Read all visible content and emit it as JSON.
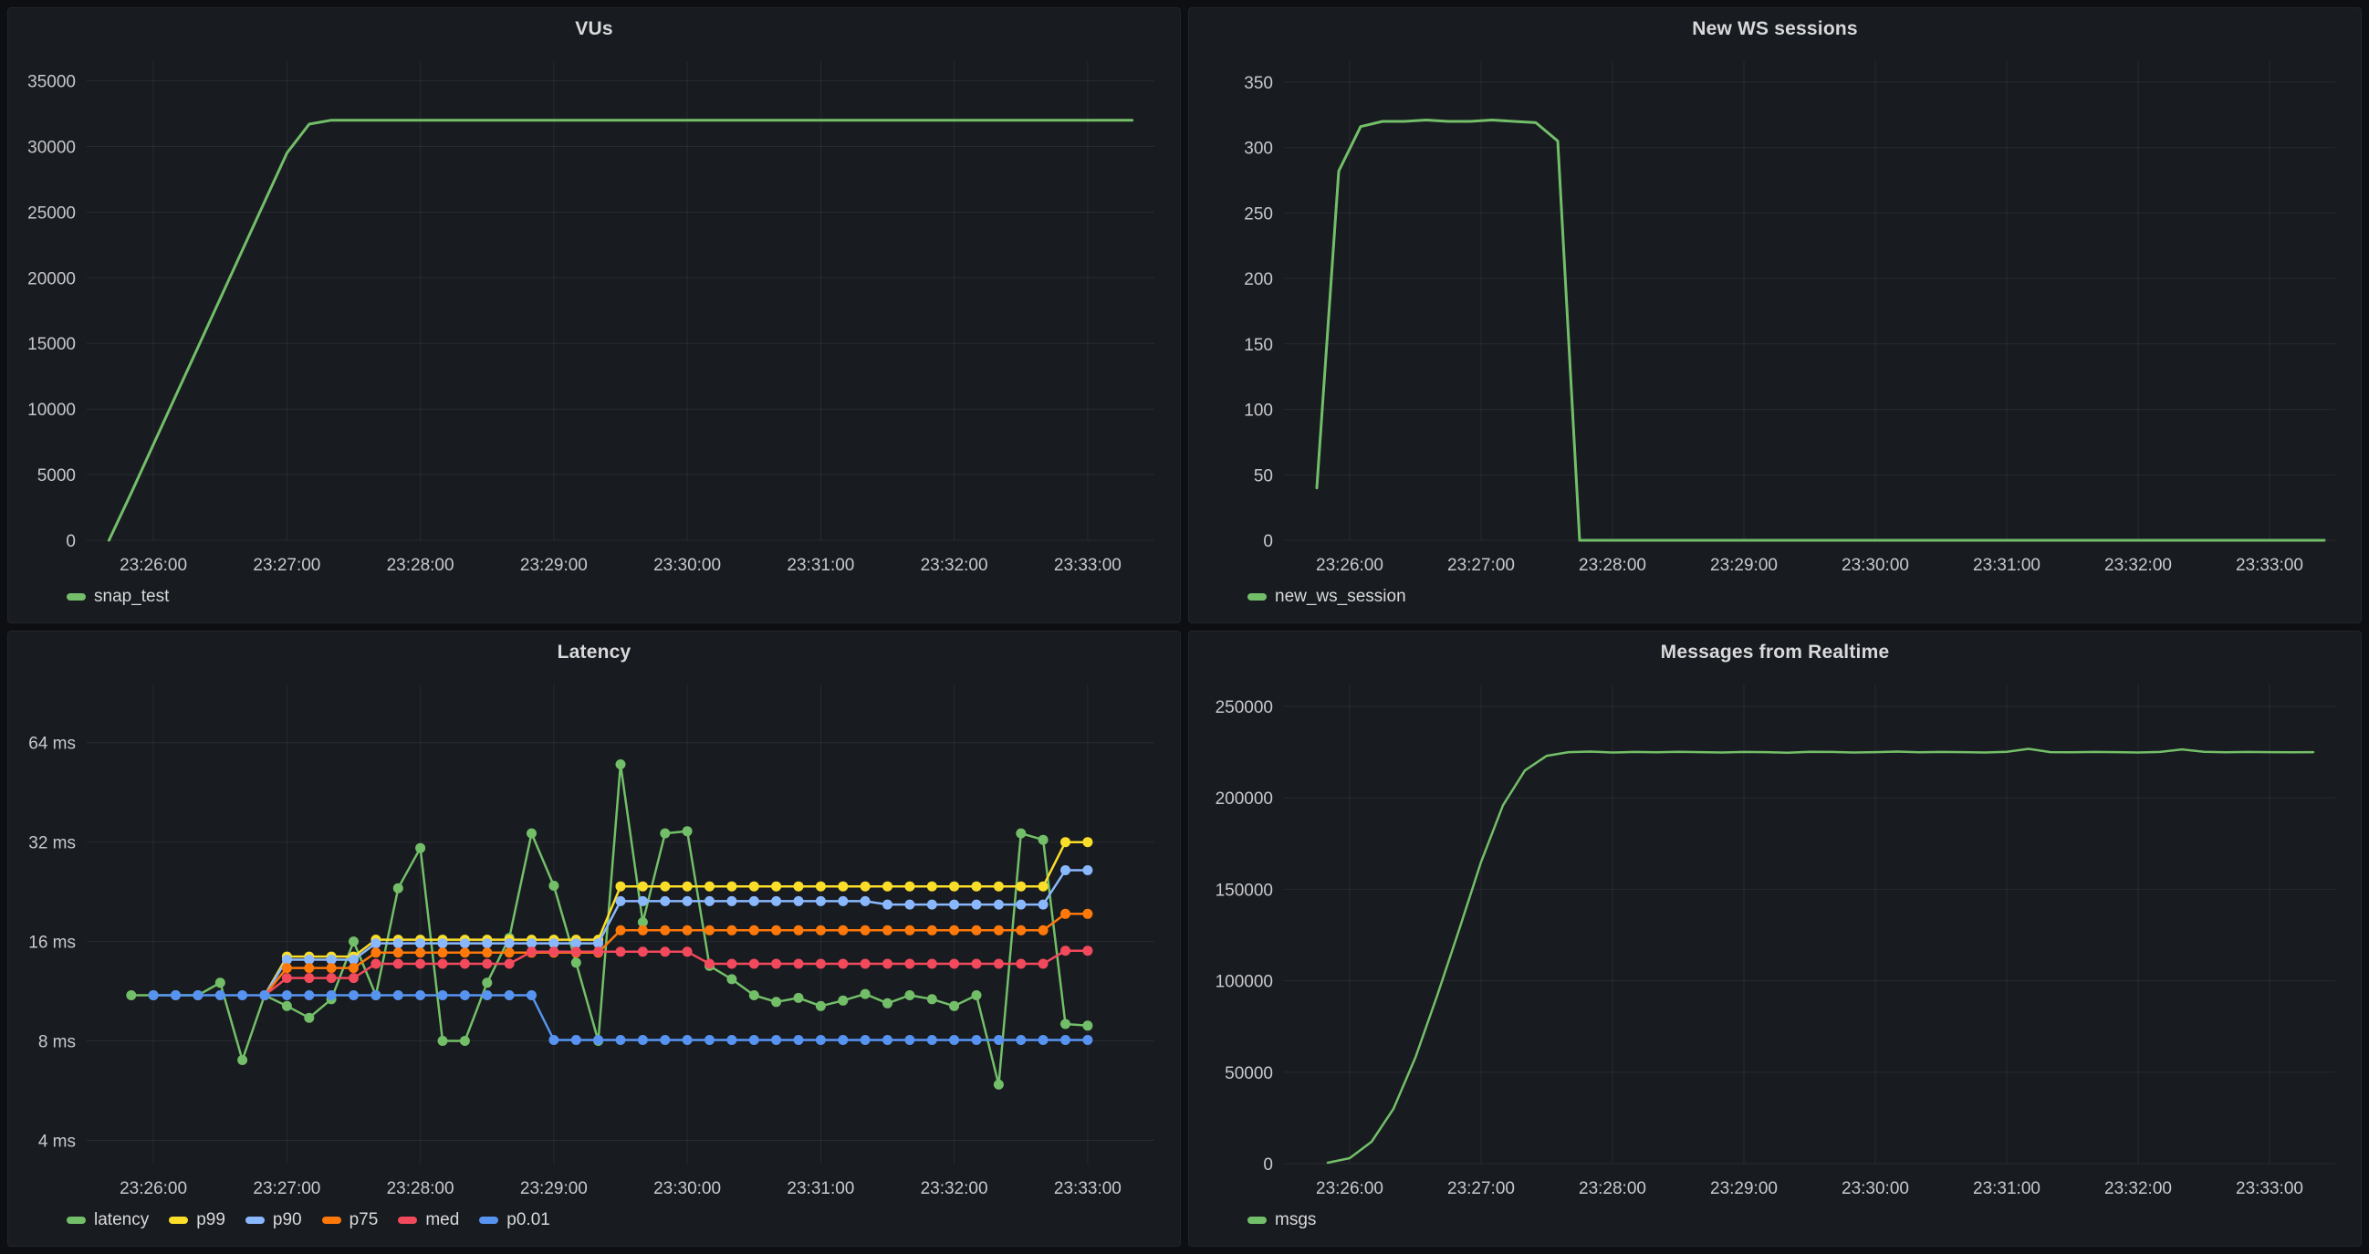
{
  "theme": {
    "page_bg": "#0e0f13",
    "panel_bg": "#181b1f",
    "panel_border": "#22252b",
    "title_color": "#d8d9da",
    "tick_color": "#c8c9cd",
    "grid_color": "rgba(204,204,220,0.09)",
    "palette": {
      "green": "#73bf69",
      "yellow": "#fade2a",
      "light_blue": "#8ab8ff",
      "orange": "#ff780a",
      "red": "#f2495c",
      "blue": "#5794f2"
    }
  },
  "chart_data": [
    {
      "type": "line",
      "title": "VUs",
      "legend_position": "bottom",
      "grid": true,
      "margins": {
        "l": 86,
        "r": 28,
        "t": 12,
        "b": 46
      },
      "x": {
        "domain": [
          "23:25:30",
          "23:33:30"
        ],
        "ticks": [
          "23:26:00",
          "23:27:00",
          "23:28:00",
          "23:29:00",
          "23:30:00",
          "23:31:00",
          "23:32:00",
          "23:33:00"
        ]
      },
      "y": {
        "scale": "linear",
        "domain": [
          0,
          36500
        ],
        "ticks": [
          {
            "value": 0,
            "label": "0"
          },
          {
            "value": 5000,
            "label": "5000"
          },
          {
            "value": 10000,
            "label": "10000"
          },
          {
            "value": 15000,
            "label": "15000"
          },
          {
            "value": 20000,
            "label": "20000"
          },
          {
            "value": 25000,
            "label": "25000"
          },
          {
            "value": 30000,
            "label": "30000"
          },
          {
            "value": 35000,
            "label": "35000"
          }
        ]
      },
      "series": [
        {
          "name": "snap_test",
          "color": "#73bf69",
          "width": 3,
          "points": false,
          "point_radius": 0,
          "start": "23:25:40",
          "step": 10,
          "values": [
            0,
            3600,
            7300,
            11000,
            14700,
            18400,
            22100,
            25800,
            29500,
            31700,
            32000,
            32000,
            32000,
            32000,
            32000,
            32000,
            32000,
            32000,
            32000,
            32000,
            32000,
            32000,
            32000,
            32000,
            32000,
            32000,
            32000,
            32000,
            32000,
            32000,
            32000,
            32000,
            32000,
            32000,
            32000,
            32000,
            32000,
            32000,
            32000,
            32000,
            32000,
            32000,
            32000,
            32000,
            32000,
            32000,
            32000
          ]
        }
      ]
    },
    {
      "type": "line",
      "title": "New WS sessions",
      "legend_position": "bottom",
      "grid": true,
      "margins": {
        "l": 104,
        "r": 28,
        "t": 12,
        "b": 46
      },
      "x": {
        "domain": [
          "23:25:30",
          "23:33:30"
        ],
        "ticks": [
          "23:26:00",
          "23:27:00",
          "23:28:00",
          "23:29:00",
          "23:30:00",
          "23:31:00",
          "23:32:00",
          "23:33:00"
        ]
      },
      "y": {
        "scale": "linear",
        "domain": [
          0,
          366
        ],
        "ticks": [
          {
            "value": 0,
            "label": "0"
          },
          {
            "value": 50,
            "label": "50"
          },
          {
            "value": 100,
            "label": "100"
          },
          {
            "value": 150,
            "label": "150"
          },
          {
            "value": 200,
            "label": "200"
          },
          {
            "value": 250,
            "label": "250"
          },
          {
            "value": 300,
            "label": "300"
          },
          {
            "value": 350,
            "label": "350"
          }
        ]
      },
      "series": [
        {
          "name": "new_ws_session",
          "color": "#73bf69",
          "width": 3,
          "points": false,
          "point_radius": 0,
          "start": "23:25:45",
          "step": 10,
          "values": [
            40,
            282,
            316,
            320,
            320,
            321,
            320,
            320,
            321,
            320,
            319,
            305,
            0,
            0,
            0,
            0,
            0,
            0,
            0,
            0,
            0,
            0,
            0,
            0,
            0,
            0,
            0,
            0,
            0,
            0,
            0,
            0,
            0,
            0,
            0,
            0,
            0,
            0,
            0,
            0,
            0,
            0,
            0,
            0,
            0,
            0,
            0
          ]
        }
      ]
    },
    {
      "type": "line",
      "title": "Latency",
      "legend_position": "bottom",
      "grid": true,
      "margins": {
        "l": 86,
        "r": 28,
        "t": 12,
        "b": 46
      },
      "x": {
        "domain": [
          "23:25:30",
          "23:33:30"
        ],
        "ticks": [
          "23:26:00",
          "23:27:00",
          "23:28:00",
          "23:29:00",
          "23:30:00",
          "23:31:00",
          "23:32:00",
          "23:33:00"
        ]
      },
      "y": {
        "scale": "log2",
        "domain": [
          3.4,
          96
        ],
        "unit": "ms",
        "ticks": [
          {
            "value": 4,
            "label": "4 ms"
          },
          {
            "value": 8,
            "label": "8 ms"
          },
          {
            "value": 16,
            "label": "16 ms"
          },
          {
            "value": 32,
            "label": "32 ms"
          },
          {
            "value": 64,
            "label": "64 ms"
          }
        ]
      },
      "series": [
        {
          "name": "latency",
          "color": "#73bf69",
          "width": 2.5,
          "points": true,
          "point_radius": 5.5,
          "start": "23:25:50",
          "step": 10,
          "values": [
            11,
            11,
            11,
            11,
            12,
            7,
            11,
            10.2,
            9.4,
            10.7,
            16,
            11,
            23.2,
            30.7,
            8,
            8,
            12,
            16.4,
            34,
            23.6,
            13.8,
            8,
            55,
            18.3,
            34,
            34.5,
            13.5,
            12.3,
            11,
            10.5,
            10.8,
            10.2,
            10.6,
            11.1,
            10.4,
            11,
            10.7,
            10.2,
            11,
            5.9,
            34,
            32.5,
            9,
            8.9
          ]
        },
        {
          "name": "p99",
          "color": "#fade2a",
          "width": 2.5,
          "points": true,
          "point_radius": 5.5,
          "start": "23:26:50",
          "step": 10,
          "values": [
            11,
            14.4,
            14.4,
            14.4,
            14.4,
            16.2,
            16.2,
            16.2,
            16.2,
            16.2,
            16.2,
            16.2,
            16.2,
            16.2,
            16.2,
            16.2,
            23.5,
            23.5,
            23.5,
            23.5,
            23.5,
            23.5,
            23.5,
            23.5,
            23.5,
            23.5,
            23.5,
            23.5,
            23.5,
            23.5,
            23.5,
            23.5,
            23.5,
            23.5,
            23.5,
            23.5,
            32,
            32
          ]
        },
        {
          "name": "p90",
          "color": "#8ab8ff",
          "width": 2.5,
          "points": true,
          "point_radius": 5.5,
          "start": "23:26:50",
          "step": 10,
          "values": [
            11,
            14.1,
            14.1,
            14.1,
            14.1,
            15.8,
            15.8,
            15.8,
            15.8,
            15.8,
            15.8,
            15.8,
            15.8,
            15.8,
            15.8,
            15.8,
            21.2,
            21.2,
            21.2,
            21.2,
            21.2,
            21.2,
            21.2,
            21.2,
            21.2,
            21.2,
            21.2,
            21.2,
            20.7,
            20.7,
            20.7,
            20.7,
            20.7,
            20.7,
            20.7,
            20.7,
            26.3,
            26.3
          ]
        },
        {
          "name": "p75",
          "color": "#ff780a",
          "width": 2.5,
          "points": true,
          "point_radius": 5.5,
          "start": "23:26:50",
          "step": 10,
          "values": [
            11,
            13.3,
            13.3,
            13.3,
            13.3,
            14.8,
            14.8,
            14.8,
            14.8,
            14.8,
            14.8,
            14.8,
            14.8,
            14.8,
            14.8,
            14.8,
            17.3,
            17.3,
            17.3,
            17.3,
            17.3,
            17.3,
            17.3,
            17.3,
            17.3,
            17.3,
            17.3,
            17.3,
            17.3,
            17.3,
            17.3,
            17.3,
            17.3,
            17.3,
            17.3,
            17.3,
            19.4,
            19.4
          ]
        },
        {
          "name": "med",
          "color": "#f2495c",
          "width": 2.5,
          "points": true,
          "point_radius": 5.5,
          "start": "23:26:50",
          "step": 10,
          "values": [
            11,
            12.4,
            12.4,
            12.4,
            12.4,
            13.7,
            13.7,
            13.7,
            13.7,
            13.7,
            13.7,
            13.7,
            14.9,
            14.9,
            14.9,
            14.9,
            14.9,
            14.9,
            14.9,
            14.9,
            13.7,
            13.7,
            13.7,
            13.7,
            13.7,
            13.7,
            13.7,
            13.7,
            13.7,
            13.7,
            13.7,
            13.7,
            13.7,
            13.7,
            13.7,
            13.7,
            15,
            15
          ]
        },
        {
          "name": "p0.01",
          "color": "#5794f2",
          "width": 2.5,
          "points": true,
          "point_radius": 5.5,
          "start": "23:26:00",
          "step": 10,
          "values": [
            11,
            11,
            11,
            11,
            11,
            11,
            11,
            11,
            11,
            11,
            11,
            11,
            11,
            11,
            11,
            11,
            11,
            11,
            8.05,
            8.05,
            8.05,
            8.05,
            8.05,
            8.05,
            8.05,
            8.05,
            8.05,
            8.05,
            8.05,
            8.05,
            8.05,
            8.05,
            8.05,
            8.05,
            8.05,
            8.05,
            8.05,
            8.05,
            8.05,
            8.05,
            8.05,
            8.05,
            8.05
          ]
        }
      ]
    },
    {
      "type": "line",
      "title": "Messages from Realtime",
      "legend_position": "bottom",
      "grid": true,
      "margins": {
        "l": 104,
        "r": 28,
        "t": 12,
        "b": 46
      },
      "x": {
        "domain": [
          "23:25:30",
          "23:33:30"
        ],
        "ticks": [
          "23:26:00",
          "23:27:00",
          "23:28:00",
          "23:29:00",
          "23:30:00",
          "23:31:00",
          "23:32:00",
          "23:33:00"
        ]
      },
      "y": {
        "scale": "linear",
        "domain": [
          0,
          262000
        ],
        "ticks": [
          {
            "value": 0,
            "label": "0"
          },
          {
            "value": 50000,
            "label": "50000"
          },
          {
            "value": 100000,
            "label": "100000"
          },
          {
            "value": 150000,
            "label": "150000"
          },
          {
            "value": 200000,
            "label": "200000"
          },
          {
            "value": 250000,
            "label": "250000"
          }
        ]
      },
      "series": [
        {
          "name": "msgs",
          "color": "#73bf69",
          "width": 2.5,
          "points": false,
          "point_radius": 0,
          "start": "23:25:50",
          "step": 10,
          "values": [
            500,
            3000,
            12000,
            30000,
            58000,
            92000,
            128000,
            165000,
            196000,
            215000,
            223000,
            225000,
            225300,
            224800,
            225100,
            224900,
            225200,
            225000,
            224800,
            225100,
            225000,
            224700,
            225200,
            225100,
            224800,
            225000,
            225300,
            224900,
            225100,
            225000,
            224800,
            225200,
            226800,
            225000,
            224900,
            225100,
            225000,
            224800,
            225100,
            226500,
            225200,
            224900,
            225100,
            225000,
            224900,
            225000
          ]
        }
      ]
    }
  ]
}
